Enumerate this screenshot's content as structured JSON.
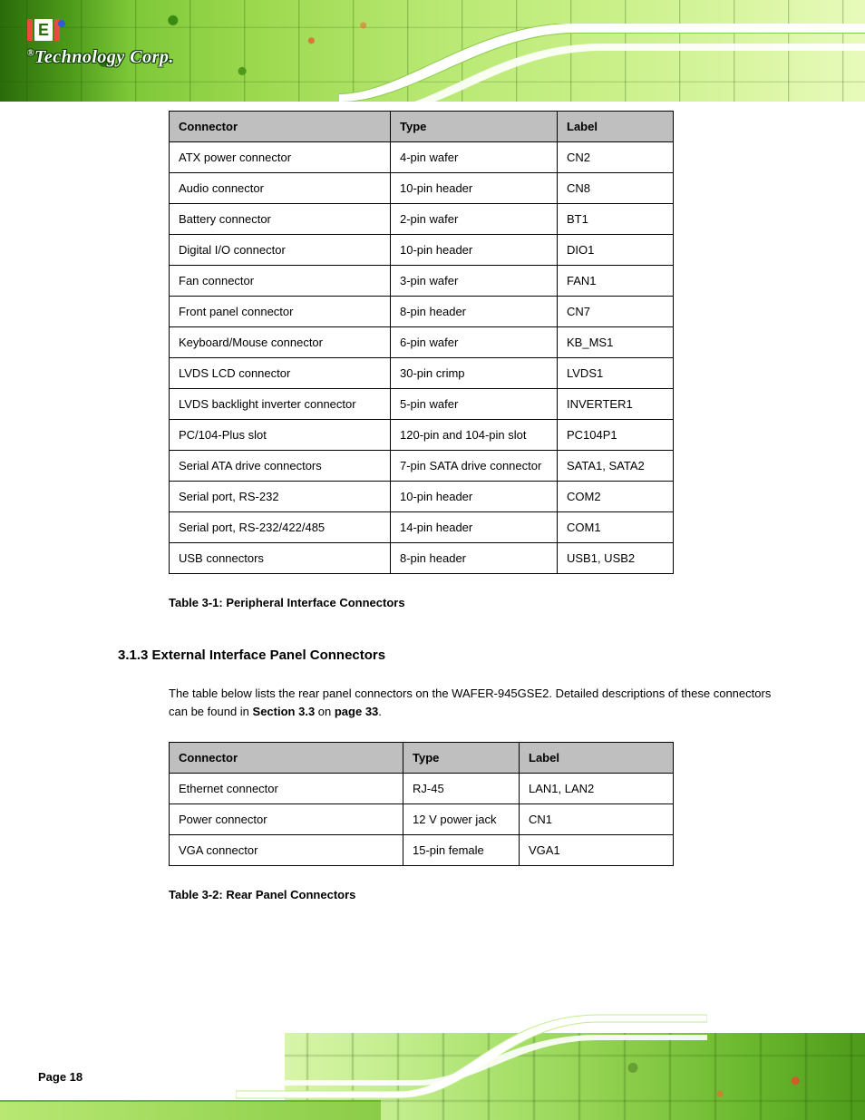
{
  "header": {
    "logo_letter": "E",
    "company_text": "Technology Corp.",
    "swoosh_color": "#ffffff",
    "swoosh_edge": "#8acc48"
  },
  "table1": {
    "col_widths": [
      "244px",
      "184px",
      "128px"
    ],
    "headers": [
      "Connector",
      "Type",
      "Label"
    ],
    "rows": [
      [
        "ATX power connector",
        "4-pin wafer",
        "CN2"
      ],
      [
        "Audio connector",
        "10-pin header",
        "CN8"
      ],
      [
        "Battery connector",
        "2-pin wafer",
        "BT1"
      ],
      [
        "Digital I/O connector",
        "10-pin header",
        "DIO1"
      ],
      [
        "Fan connector",
        "3-pin wafer",
        "FAN1"
      ],
      [
        "Front panel connector",
        "8-pin header",
        "CN7"
      ],
      [
        "Keyboard/Mouse connector",
        "6-pin wafer",
        "KB_MS1"
      ],
      [
        "LVDS LCD connector",
        "30-pin crimp",
        "LVDS1"
      ],
      [
        "LVDS backlight inverter connector",
        "5-pin wafer",
        "INVERTER1"
      ],
      [
        "PC/104-Plus slot",
        "120-pin and 104-pin slot",
        "PC104P1"
      ],
      [
        "Serial ATA drive connectors",
        "7-pin SATA drive connector",
        "SATA1, SATA2"
      ],
      [
        "Serial port, RS-232",
        "10-pin header",
        "COM2"
      ],
      [
        "Serial port, RS-232/422/485",
        "14-pin header",
        "COM1"
      ],
      [
        "USB connectors",
        "8-pin header",
        "USB1, USB2"
      ]
    ]
  },
  "caption1": "Table 3-1: Peripheral Interface Connectors",
  "section_heading": "3.1.3  External Interface Panel Connectors",
  "body_text": "The table below lists the rear panel connectors on the WAFER-945GSE2. Detailed descriptions of these connectors can be found in",
  "body_text_strong": "Section 3.3",
  "body_text_after": " on",
  "body_text_strong2": " page 33",
  "body_text_after2": ".",
  "table2": {
    "col_widths": [
      "258px",
      "128px",
      "170px"
    ],
    "headers": [
      "Connector",
      "Type",
      "Label"
    ],
    "rows": [
      [
        "Ethernet connector",
        "RJ-45",
        "LAN1, LAN2"
      ],
      [
        "Power connector",
        "12 V power jack",
        "CN1"
      ],
      [
        "VGA connector",
        "15-pin female",
        "VGA1"
      ]
    ]
  },
  "caption2": "Table 3-2: Rear Panel Connectors",
  "page_number": "Page 18",
  "colors": {
    "header_bg": "#bfbfbf",
    "border": "#000000"
  }
}
